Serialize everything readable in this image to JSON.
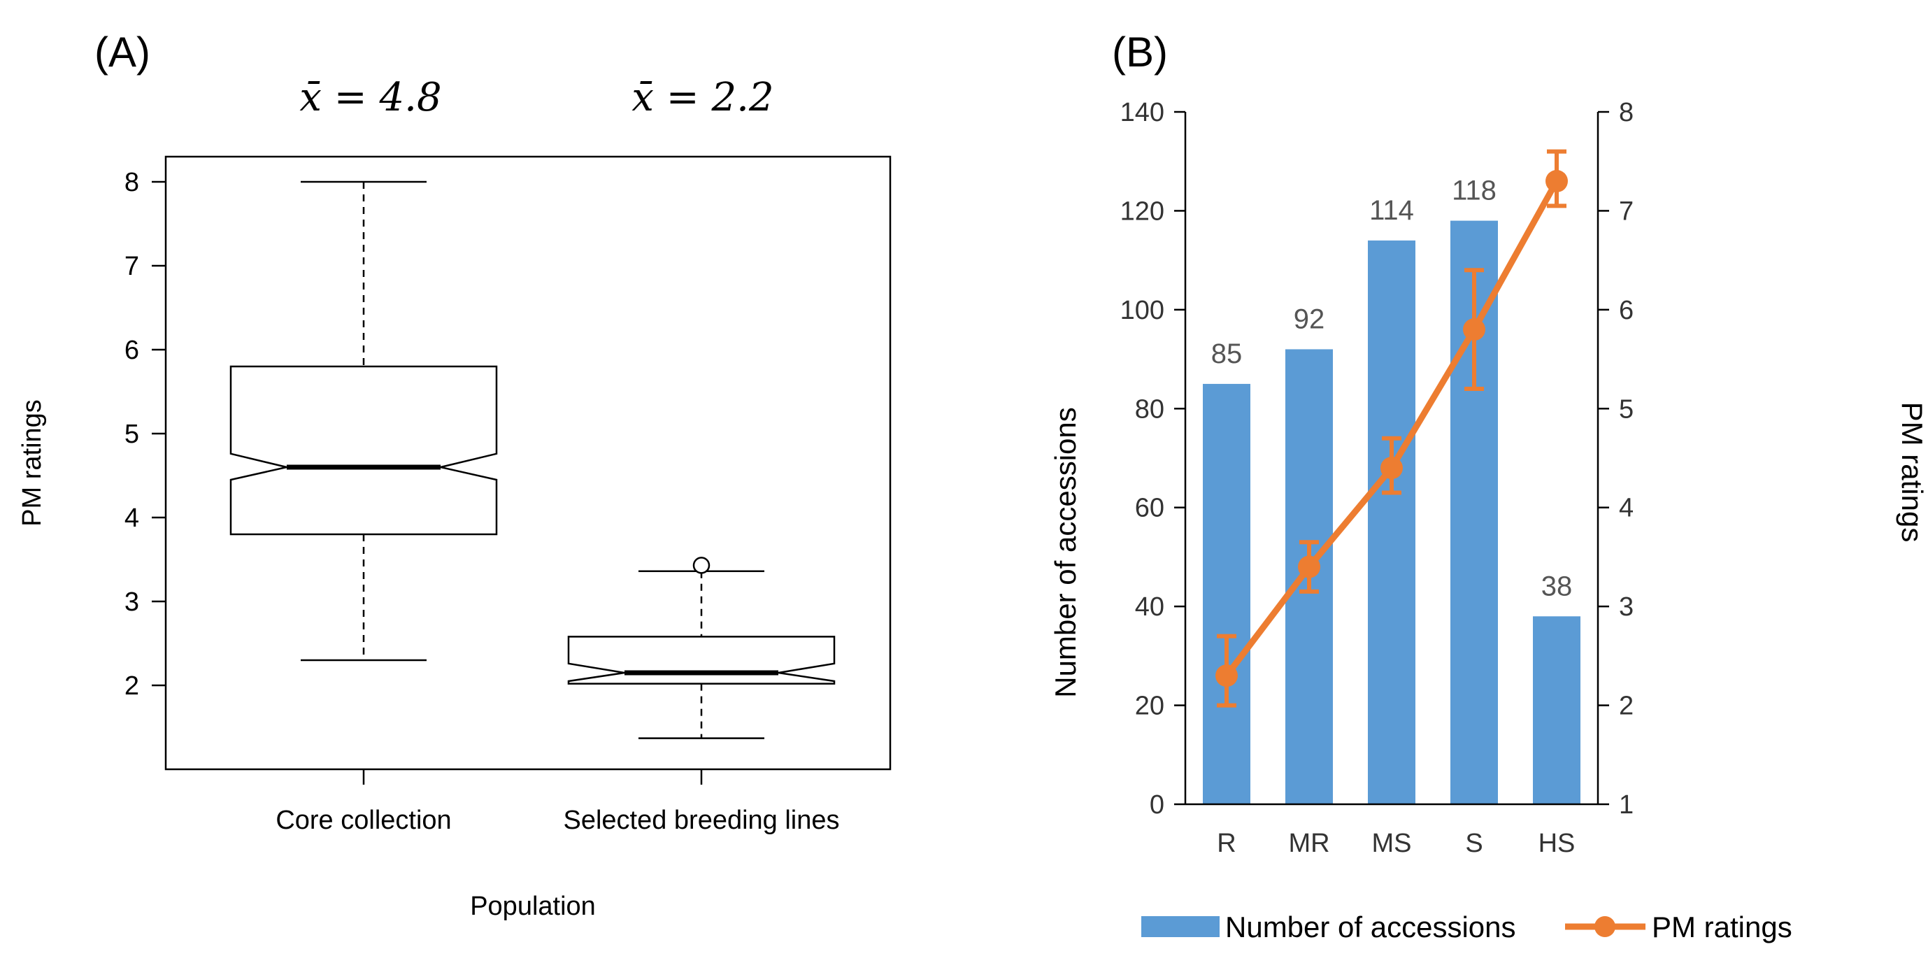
{
  "chart_data": [
    {
      "type": "box",
      "panel_label": "(A)",
      "xlabel": "Population",
      "ylabel": "PM ratings",
      "ylim": [
        1.0,
        8.3
      ],
      "yticks": [
        "2",
        "3",
        "4",
        "5",
        "6",
        "7",
        "8"
      ],
      "categories": [
        "Core collection",
        "Selected breeding lines"
      ],
      "annotations": [
        "x̄ = 4.8",
        "x̄ = 2.2"
      ],
      "boxes": [
        {
          "name": "Core collection",
          "whisker_low": 2.3,
          "q1": 3.8,
          "median": 4.6,
          "q3": 5.8,
          "whisker_high": 8.0,
          "notch_low": 4.45,
          "notch_high": 4.76,
          "outliers": []
        },
        {
          "name": "Selected breeding lines",
          "whisker_low": 1.37,
          "q1": 2.02,
          "median": 2.15,
          "q3": 2.58,
          "whisker_high": 3.36,
          "notch_low": 2.05,
          "notch_high": 2.26,
          "outliers": [
            3.43
          ]
        }
      ]
    },
    {
      "type": "bar+line",
      "panel_label": "(B)",
      "categories": [
        "R",
        "MR",
        "MS",
        "S",
        "HS"
      ],
      "ylabel": "Number of accessions",
      "ylim": [
        0,
        140
      ],
      "yticks": [
        "0",
        "20",
        "40",
        "60",
        "80",
        "100",
        "120",
        "140"
      ],
      "y2label": "PM ratings",
      "y2lim": [
        1,
        8
      ],
      "y2ticks": [
        "1",
        "2",
        "3",
        "4",
        "5",
        "6",
        "7",
        "8"
      ],
      "bar_values": [
        85,
        92,
        114,
        118,
        38
      ],
      "bar_labels": [
        "85",
        "92",
        "114",
        "118",
        "38"
      ],
      "line_categories": [
        "R",
        "MR",
        "MS",
        "S",
        "HS"
      ],
      "line_values": [
        2.3,
        3.4,
        4.4,
        5.8,
        7.3
      ],
      "line_err_low": [
        2.0,
        3.15,
        4.15,
        5.2,
        7.05
      ],
      "line_err_high": [
        2.7,
        3.65,
        4.7,
        6.4,
        7.6
      ],
      "legend": [
        "Number of accessions",
        "PM ratings"
      ],
      "legend_position": "bottom",
      "colors": {
        "bar": "#5B9BD5",
        "line": "#ED7D31"
      }
    }
  ]
}
